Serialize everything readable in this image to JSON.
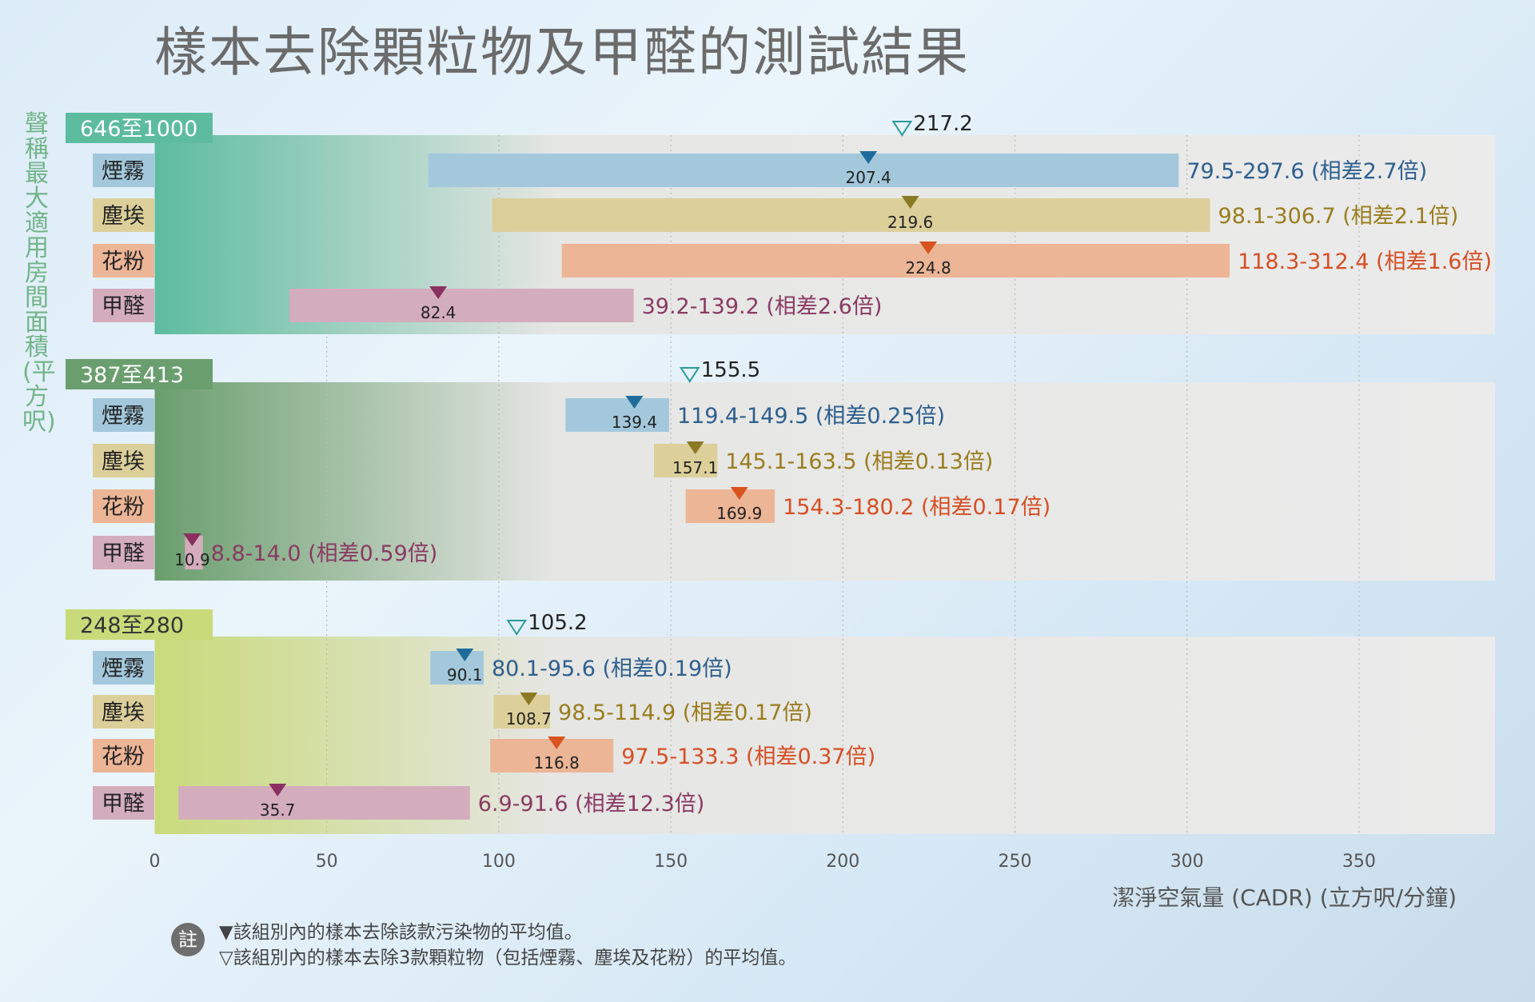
{
  "chart_data": {
    "type": "bar",
    "subtype": "range-bar",
    "title": "樣本去除顆粒物及甲醛的測試結果",
    "ylabel": "聲稱最大適用房間面積(平方呎)",
    "xlabel": "潔淨空氣量 (CADR) (立方呎/分鐘)",
    "xlim": [
      0,
      390
    ],
    "xticks": [
      0,
      50,
      100,
      150,
      200,
      250,
      300,
      350
    ],
    "grid": true,
    "colors": {
      "smoke": {
        "bar": "#a3c8dc",
        "marker": "#1f6c9c",
        "text": "#2d5f8e"
      },
      "dust": {
        "bar": "#dccf9a",
        "marker": "#8a7a25",
        "text": "#9a7d1e"
      },
      "pollen": {
        "bar": "#ecb596",
        "marker": "#d9531f",
        "text": "#d64f24"
      },
      "formaldehyde": {
        "bar": "#d4adbd",
        "marker": "#8a3060",
        "text": "#8a3a63"
      }
    },
    "groups": [
      {
        "label": "646至1000",
        "color": "#5dbc9f",
        "label_text_color": "#ffffff",
        "overall_avg": 217.2,
        "overall_avg_label": "217.2",
        "rows": [
          {
            "key": "smoke",
            "name": "煙霧",
            "min": 79.5,
            "max": 297.6,
            "avg": 207.4,
            "avg_label": "207.4",
            "range_label": "79.5-297.6 (相差2.7倍)"
          },
          {
            "key": "dust",
            "name": "塵埃",
            "min": 98.1,
            "max": 306.7,
            "avg": 219.6,
            "avg_label": "219.6",
            "range_label": "98.1-306.7 (相差2.1倍)"
          },
          {
            "key": "pollen",
            "name": "花粉",
            "min": 118.3,
            "max": 312.4,
            "avg": 224.8,
            "avg_label": "224.8",
            "range_label": "118.3-312.4 (相差1.6倍)"
          },
          {
            "key": "formaldehyde",
            "name": "甲醛",
            "min": 39.2,
            "max": 139.2,
            "avg": 82.4,
            "avg_label": "82.4",
            "range_label": "39.2-139.2 (相差2.6倍)"
          }
        ]
      },
      {
        "label": "387至413",
        "color": "#6a9e6e",
        "label_text_color": "#ffffff",
        "overall_avg": 155.5,
        "overall_avg_label": "155.5",
        "rows": [
          {
            "key": "smoke",
            "name": "煙霧",
            "min": 119.4,
            "max": 149.5,
            "avg": 139.4,
            "avg_label": "139.4",
            "range_label": "119.4-149.5 (相差0.25倍)"
          },
          {
            "key": "dust",
            "name": "塵埃",
            "min": 145.1,
            "max": 163.5,
            "avg": 157.1,
            "avg_label": "157.1",
            "range_label": "145.1-163.5 (相差0.13倍)"
          },
          {
            "key": "pollen",
            "name": "花粉",
            "min": 154.3,
            "max": 180.2,
            "avg": 169.9,
            "avg_label": "169.9",
            "range_label": "154.3-180.2 (相差0.17倍)"
          },
          {
            "key": "formaldehyde",
            "name": "甲醛",
            "min": 8.8,
            "max": 14.0,
            "avg": 10.9,
            "avg_label": "10.9",
            "range_label": "8.8-14.0 (相差0.59倍)"
          }
        ]
      },
      {
        "label": "248至280",
        "color": "#c9da7a",
        "label_text_color": "#333333",
        "overall_avg": 105.2,
        "overall_avg_label": "105.2",
        "rows": [
          {
            "key": "smoke",
            "name": "煙霧",
            "min": 80.1,
            "max": 95.6,
            "avg": 90.1,
            "avg_label": "90.1",
            "range_label": "80.1-95.6 (相差0.19倍)"
          },
          {
            "key": "dust",
            "name": "塵埃",
            "min": 98.5,
            "max": 114.9,
            "avg": 108.7,
            "avg_label": "108.7",
            "range_label": "98.5-114.9 (相差0.17倍)"
          },
          {
            "key": "pollen",
            "name": "花粉",
            "min": 97.5,
            "max": 133.3,
            "avg": 116.8,
            "avg_label": "116.8",
            "range_label": "97.5-133.3 (相差0.37倍)"
          },
          {
            "key": "formaldehyde",
            "name": "甲醛",
            "min": 6.9,
            "max": 91.6,
            "avg": 35.7,
            "avg_label": "35.7",
            "range_label": "6.9-91.6 (相差12.3倍)"
          }
        ]
      }
    ]
  },
  "note": {
    "icon_label": "註",
    "lines": [
      "▼該組別內的樣本去除該款污染物的平均值。",
      "▽該組別內的樣本去除3款顆粒物（包括煙霧、塵埃及花粉）的平均值。"
    ]
  }
}
